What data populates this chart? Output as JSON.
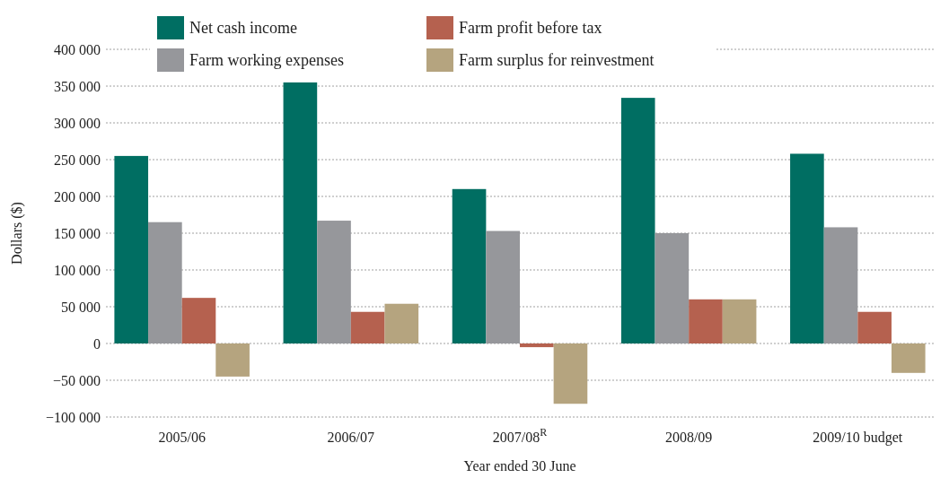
{
  "chart_data": {
    "type": "bar",
    "xlabel": "Year ended 30 June",
    "ylabel": "Dollars ($)",
    "categories": [
      "2005/06",
      "2006/07",
      "2007/08$^{R}$",
      "2008/09",
      "2009/10 budget"
    ],
    "series": [
      {
        "name": "Net cash income",
        "color": "#006e62",
        "values": [
          255000,
          355000,
          210000,
          334000,
          258000
        ]
      },
      {
        "name": "Farm working expenses",
        "color": "#96979b",
        "values": [
          165000,
          167000,
          153000,
          150000,
          158000
        ]
      },
      {
        "name": "Farm profit before tax",
        "color": "#b5614f",
        "values": [
          62000,
          43000,
          -5000,
          60000,
          43000
        ]
      },
      {
        "name": "Farm surplus for reinvestment",
        "color": "#b5a47f",
        "values": [
          -45000,
          54000,
          -82000,
          60000,
          -40000
        ]
      }
    ],
    "ylim": [
      -100000,
      400000
    ],
    "yticks": [
      {
        "value": -100000,
        "label": "−100 000"
      },
      {
        "value": -50000,
        "label": "−50 000"
      },
      {
        "value": 0,
        "label": "0"
      },
      {
        "value": 50000,
        "label": "50 000"
      },
      {
        "value": 100000,
        "label": "100 000"
      },
      {
        "value": 150000,
        "label": "150 000"
      },
      {
        "value": 200000,
        "label": "200 000"
      },
      {
        "value": 250000,
        "label": "250 000"
      },
      {
        "value": 300000,
        "label": "300 000"
      },
      {
        "value": 350000,
        "label": "350 000"
      },
      {
        "value": 400000,
        "label": "400 000"
      }
    ],
    "grid": "y",
    "legend": "top"
  }
}
